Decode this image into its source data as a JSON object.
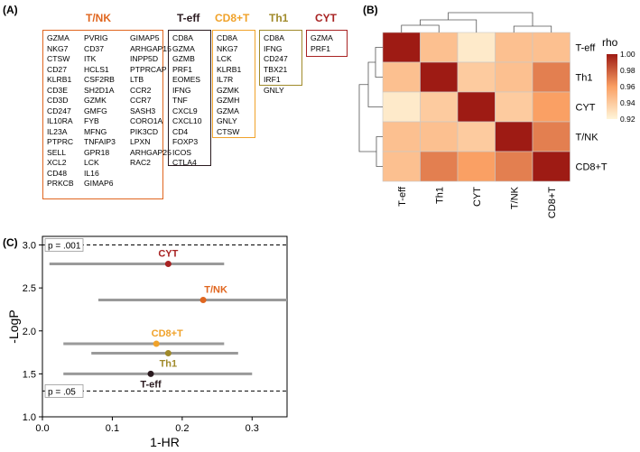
{
  "panels": {
    "a": "(A)",
    "b": "(B)",
    "c": "(C)"
  },
  "gene_sets": [
    {
      "name": "T/NK",
      "color": "#e0661f",
      "columns": [
        [
          "GZMA",
          "NKG7",
          "CTSW",
          "CD27",
          "KLRB1",
          "CD3E",
          "CD3D",
          "CD247",
          "IL10RA",
          "IL23A",
          "PTPRC",
          "SELL",
          "XCL2",
          "CD48",
          "PRKCB"
        ],
        [
          "PVRIG",
          "CD37",
          "ITK",
          "HCLS1",
          "CSF2RB",
          "SH2D1A",
          "GZMK",
          "GMFG",
          "FYB",
          "MFNG",
          "TNFAIP3",
          "GPR18",
          "LCK",
          "IL16",
          "GIMAP6"
        ],
        [
          "GIMAP5",
          "ARHGAP15",
          "INPP5D",
          "PTPRCAP",
          "LTB",
          "CCR2",
          "CCR7",
          "SASH3",
          "CORO1A",
          "PIK3CD",
          "LPXN",
          "ARHGAP25",
          "RAC2"
        ]
      ]
    },
    {
      "name": "T-eff",
      "color": "#2a1a1f",
      "columns": [
        [
          "CD8A",
          "GZMA",
          "GZMB",
          "PRF1",
          "EOMES",
          "IFNG",
          "TNF",
          "CXCL9",
          "CXCL10",
          "CD4",
          "FOXP3",
          "ICOS",
          "CTLA4"
        ]
      ]
    },
    {
      "name": "CD8+T",
      "color": "#f0a22a",
      "columns": [
        [
          "CD8A",
          "NKG7",
          "LCK",
          "KLRB1",
          "IL7R",
          "GZMK",
          "GZMH",
          "GZMA",
          "GNLY",
          "CTSW"
        ]
      ]
    },
    {
      "name": "Th1",
      "color": "#a08a2a",
      "columns": [
        [
          "CD8A",
          "IFNG",
          "CD247",
          "TBX21",
          "IRF1",
          "GNLY"
        ]
      ]
    },
    {
      "name": "CYT",
      "color": "#a82323",
      "columns": [
        [
          "GZMA",
          "PRF1"
        ]
      ]
    }
  ],
  "chart_data": [
    {
      "type": "heatmap",
      "title": "",
      "rows": [
        "T-eff",
        "Th1",
        "CYT",
        "T/NK",
        "CD8+T"
      ],
      "cols": [
        "T-eff",
        "Th1",
        "CYT",
        "T/NK",
        "CD8+T"
      ],
      "values": [
        [
          1.0,
          0.945,
          0.925,
          0.945,
          0.945
        ],
        [
          0.945,
          1.0,
          0.94,
          0.945,
          0.97
        ],
        [
          0.925,
          0.94,
          1.0,
          0.94,
          0.96
        ],
        [
          0.945,
          0.945,
          0.94,
          1.0,
          0.97
        ],
        [
          0.945,
          0.97,
          0.96,
          0.97,
          1.0
        ]
      ],
      "colorbar": {
        "label": "rho",
        "ticks": [
          "1.00",
          "0.98",
          "0.96",
          "0.94",
          "0.92"
        ],
        "min": 0.92,
        "max": 1.0,
        "low_color": "#fff5d9",
        "high_color": "#9e1b14"
      }
    },
    {
      "type": "scatter",
      "title": "",
      "xlabel": "1-HR",
      "ylabel": "-LogP",
      "xlim": [
        0.0,
        0.35
      ],
      "ylim": [
        1.0,
        3.1
      ],
      "xticks": [
        "0.0",
        "0.1",
        "0.2",
        "0.3"
      ],
      "yticks": [
        "1.0",
        "1.5",
        "2.0",
        "2.5",
        "3.0"
      ],
      "reference_lines": [
        {
          "y": 3.0,
          "label": "p = .001"
        },
        {
          "y": 1.3,
          "label": "p = .05"
        }
      ],
      "points": [
        {
          "name": "CYT",
          "x": 0.18,
          "y": 2.78,
          "lo": 0.01,
          "hi": 0.26,
          "color": "#a82323"
        },
        {
          "name": "T/NK",
          "x": 0.23,
          "y": 2.36,
          "lo": 0.08,
          "hi": 0.35,
          "color": "#e0661f"
        },
        {
          "name": "CD8+T",
          "x": 0.163,
          "y": 1.85,
          "lo": 0.03,
          "hi": 0.26,
          "color": "#f0a22a"
        },
        {
          "name": "Th1",
          "x": 0.18,
          "y": 1.74,
          "lo": 0.07,
          "hi": 0.28,
          "color": "#a08a2a"
        },
        {
          "name": "T-eff",
          "x": 0.155,
          "y": 1.5,
          "lo": 0.03,
          "hi": 0.3,
          "color": "#2a1a1f"
        }
      ]
    }
  ]
}
